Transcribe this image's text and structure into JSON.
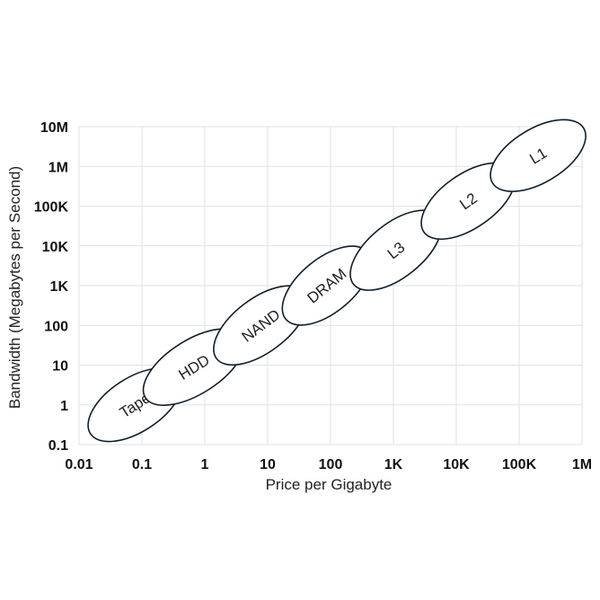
{
  "chart_data": {
    "type": "scatter",
    "title": "",
    "xlabel": "Price per Gigabyte",
    "ylabel": "Bandwidth (Megabytes per Second)",
    "x_scale": "log",
    "y_scale": "log",
    "xlim": [
      0.01,
      1000000
    ],
    "ylim": [
      0.1,
      10000000
    ],
    "x_ticks": [
      0.01,
      0.1,
      1,
      10,
      100,
      1000,
      10000,
      100000,
      1000000
    ],
    "x_tick_labels": [
      "0.01",
      "0.1",
      "1",
      "10",
      "100",
      "1K",
      "10K",
      "100K",
      "1M"
    ],
    "y_ticks": [
      0.1,
      1,
      10,
      100,
      1000,
      10000,
      100000,
      1000000,
      10000000
    ],
    "y_tick_labels": [
      "0.1",
      "1",
      "10",
      "100",
      "1K",
      "10K",
      "100K",
      "1M",
      "10M"
    ],
    "grid": true,
    "tiers": [
      {
        "label": "Tape",
        "price_range": [
          0.02,
          0.3
        ],
        "bandwidth_range": [
          0.25,
          4
        ]
      },
      {
        "label": "HDD",
        "price_range": [
          0.15,
          3
        ],
        "bandwidth_range": [
          2,
          40
        ]
      },
      {
        "label": "NAND",
        "price_range": [
          2,
          30
        ],
        "bandwidth_range": [
          20,
          500
        ]
      },
      {
        "label": "DRAM",
        "price_range": [
          25,
          300
        ],
        "bandwidth_range": [
          200,
          5000
        ]
      },
      {
        "label": "L3",
        "price_range": [
          300,
          4000
        ],
        "bandwidth_range": [
          1500,
          40000
        ]
      },
      {
        "label": "L2",
        "price_range": [
          4000,
          60000
        ],
        "bandwidth_range": [
          30000,
          600000
        ]
      },
      {
        "label": "L1",
        "price_range": [
          50000,
          800000
        ],
        "bandwidth_range": [
          500000,
          7000000
        ]
      }
    ]
  }
}
